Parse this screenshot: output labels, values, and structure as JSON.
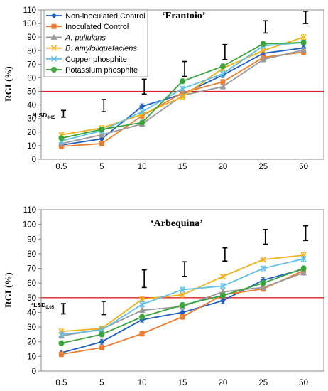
{
  "chart_data": [
    {
      "type": "line",
      "title": "‘Frantoio’",
      "xlabel": "",
      "ylabel": "RGI (%)",
      "categories": [
        "0.5",
        "5",
        "10",
        "15",
        "20",
        "25",
        "50"
      ],
      "ylim": [
        0,
        110
      ],
      "yticks": [
        0,
        10,
        20,
        30,
        40,
        50,
        60,
        70,
        80,
        90,
        100,
        110
      ],
      "grid": false,
      "legend": "top-left",
      "reference_line": {
        "y": 50,
        "color": "#e02020"
      },
      "lsd_label": {
        "prefix": "*LSD",
        "subscript": "0.05"
      },
      "lsd": [
        {
          "center": 33.5,
          "half": 2.5
        },
        {
          "center": 39.5,
          "half": 4.5
        },
        {
          "center": 53.5,
          "half": 5.5
        },
        {
          "center": 66.5,
          "half": 5.5
        },
        {
          "center": 79.0,
          "half": 5.5
        },
        {
          "center": 97.5,
          "half": 4.5
        },
        {
          "center": 104.5,
          "half": 4.5
        }
      ],
      "series": [
        {
          "name": "Non-inoculated Control",
          "color": "#1f5fbf",
          "marker": "diamond",
          "values": [
            10.5,
            15,
            39,
            48,
            62,
            78,
            82
          ]
        },
        {
          "name": "Inoculated Control",
          "color": "#ed7d31",
          "marker": "square",
          "values": [
            9.5,
            11.5,
            32,
            49,
            57,
            75,
            79
          ]
        },
        {
          "name": "A. pullulans",
          "color": "#9a9a9a",
          "marker": "triangle",
          "values": [
            11.5,
            18,
            26,
            47,
            53.5,
            73.5,
            80.5
          ]
        },
        {
          "name": "B. amyloliquefaciens",
          "color": "#f2b11a",
          "marker": "x",
          "values": [
            18,
            23,
            33,
            46,
            67,
            80,
            90
          ]
        },
        {
          "name": "Copper phosphite",
          "color": "#62c0e6",
          "marker": "x",
          "values": [
            13.5,
            21,
            35,
            52,
            63,
            83.5,
            86
          ]
        },
        {
          "name": "Potassium phosphite",
          "color": "#3aa53a",
          "marker": "circle",
          "values": [
            15.5,
            22,
            27,
            57.5,
            68.5,
            85,
            86
          ]
        }
      ]
    },
    {
      "type": "line",
      "title": "‘Arbequina’",
      "xlabel": "",
      "ylabel": "RGI (%)",
      "categories": [
        "0.5",
        "5",
        "10",
        "15",
        "20",
        "25",
        "50"
      ],
      "ylim": [
        0,
        110
      ],
      "yticks": [
        0,
        10,
        20,
        30,
        40,
        50,
        60,
        70,
        80,
        90,
        100,
        110
      ],
      "grid": false,
      "legend": "none",
      "reference_line": {
        "y": 50,
        "color": "#e02020"
      },
      "lsd_label": {
        "prefix": "*LSD",
        "subscript": "0.05"
      },
      "lsd": [
        {
          "center": 42.5,
          "half": 3.5
        },
        {
          "center": 43.0,
          "half": 4.5
        },
        {
          "center": 63.0,
          "half": 6.0
        },
        {
          "center": 69.5,
          "half": 5.0
        },
        {
          "center": 79.5,
          "half": 4.5
        },
        {
          "center": 91.5,
          "half": 5.0
        },
        {
          "center": 94.0,
          "half": 5.0
        }
      ],
      "series": [
        {
          "name": "Non-inoculated Control",
          "color": "#1f5fbf",
          "marker": "diamond",
          "values": [
            12.5,
            20,
            35,
            40,
            48,
            62,
            69.5
          ]
        },
        {
          "name": "Inoculated Control",
          "color": "#ed7d31",
          "marker": "square",
          "values": [
            11.5,
            16,
            25.5,
            37,
            52,
            56,
            68.5
          ]
        },
        {
          "name": "A. pullulans",
          "color": "#9a9a9a",
          "marker": "triangle",
          "values": [
            24,
            28.5,
            41.5,
            44,
            54,
            57,
            67
          ]
        },
        {
          "name": "B. amyloliquefaciens",
          "color": "#f2b11a",
          "marker": "x",
          "values": [
            27,
            29,
            49,
            52,
            64.5,
            76,
            79
          ]
        },
        {
          "name": "Copper phosphite",
          "color": "#62c0e6",
          "marker": "x",
          "values": [
            25,
            28,
            45.5,
            55.5,
            58,
            70,
            76.5
          ]
        },
        {
          "name": "Potassium phosphite",
          "color": "#3aa53a",
          "marker": "circle",
          "values": [
            19,
            25,
            37,
            45,
            51.5,
            60,
            70
          ]
        }
      ]
    }
  ]
}
